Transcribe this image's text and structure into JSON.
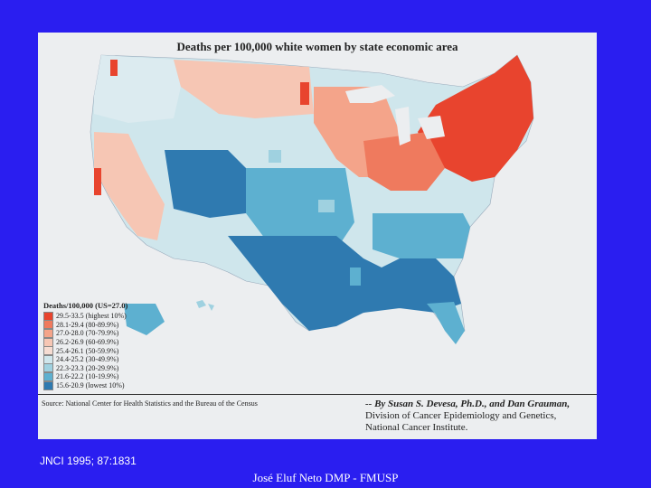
{
  "map": {
    "title": "Deaths per 100,000 white women by state economic area",
    "legend_title": "Deaths/100,000 (US=27.0)",
    "legend": [
      {
        "label": "29.5-33.5 (highest 10%)",
        "color": "#e8442e"
      },
      {
        "label": "28.1-29.4 (80-89.9%)",
        "color": "#ef7a5e"
      },
      {
        "label": "27.0-28.0 (70-79.9%)",
        "color": "#f4a48a"
      },
      {
        "label": "26.2-26.9 (60-69.9%)",
        "color": "#f6c6b4"
      },
      {
        "label": "25.4-26.1 (50-59.9%)",
        "color": "#f6dcd2"
      },
      {
        "label": "24.4-25.2 (30-49.9%)",
        "color": "#cfe6ec"
      },
      {
        "label": "22.3-23.3 (20-29.9%)",
        "color": "#9fd1e0"
      },
      {
        "label": "21.6-22.2 (10-19.9%)",
        "color": "#5db0d0"
      },
      {
        "label": "15.6-20.9 (lowest 10%)",
        "color": "#2f7ab0"
      }
    ],
    "source": "Source: National Center for Health Statistics and the Bureau of the Census",
    "byline": "-- By Susan S. Devesa, Ph.D., and Dan Grauman,",
    "division": "Division of Cancer Epidemiology and Genetics,",
    "institute": "National Cancer Institute."
  },
  "citation": "JNCI 1995; 87:1831",
  "footer": "José Eluf Neto   DMP - FMUSP"
}
